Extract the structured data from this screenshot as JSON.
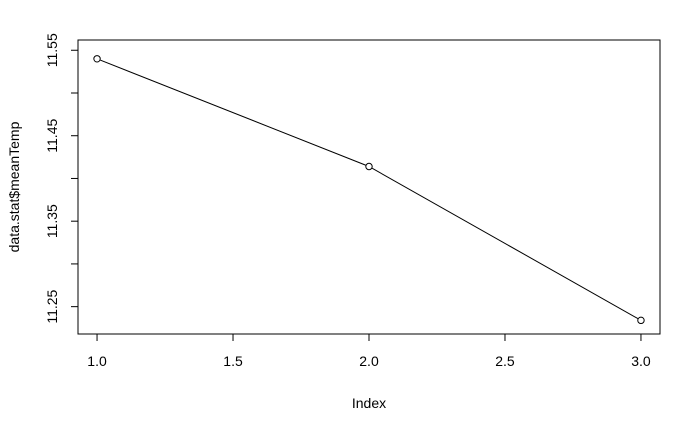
{
  "chart_data": {
    "type": "line",
    "title": "",
    "xlabel": "Index",
    "ylabel": "data.stat$meanTemp",
    "xlim": [
      0.93,
      3.07
    ],
    "ylim": [
      11.218,
      11.562
    ],
    "x_ticks": [
      {
        "value": 1.0,
        "label": "1.0"
      },
      {
        "value": 1.5,
        "label": "1.5"
      },
      {
        "value": 2.0,
        "label": "2.0"
      },
      {
        "value": 2.5,
        "label": "2.5"
      },
      {
        "value": 3.0,
        "label": "3.0"
      }
    ],
    "y_ticks": [
      {
        "value": 11.25,
        "label": "11.25"
      },
      {
        "value": 11.35,
        "label": "11.35"
      },
      {
        "value": 11.45,
        "label": "11.45"
      },
      {
        "value": 11.55,
        "label": "11.55"
      }
    ],
    "y_minor_ticks": [
      11.3,
      11.4,
      11.5
    ],
    "grid": false,
    "series": [
      {
        "x": [
          1,
          2,
          3
        ],
        "y": [
          11.54,
          11.414,
          11.234
        ],
        "color": "#000000",
        "marker": "open-circle"
      }
    ]
  }
}
